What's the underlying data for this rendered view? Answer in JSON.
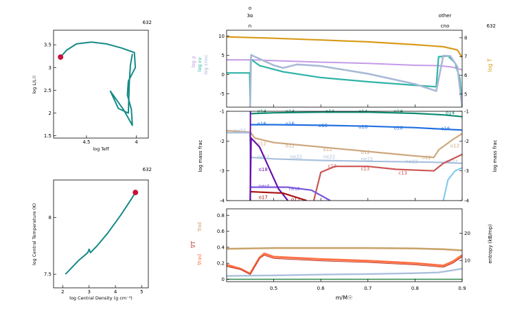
{
  "model_number": "632",
  "colors": {
    "track": "#138a86",
    "marker": "#c8123a",
    "logT": "#d99a1a",
    "logRho": "#c59ae8",
    "logEps": "#2fb3a6",
    "logEpsNuc": "#a9b9d6",
    "axis": "#000000",
    "o14": "#0f8a72",
    "o16": "#1f6fe0",
    "o12": "#cda77e",
    "ne22": "#a8bfdc",
    "c13": "#cc5555",
    "neut": "#7755dd",
    "o18": "#6611aa",
    "o17": "#aa1111",
    "grad_ad": "#c9a36a",
    "grad_rad": "#ff7043",
    "grad_T": "#c0392b",
    "entropy": "#a9c0dc"
  },
  "hr_panel": {
    "model": "632",
    "xlabel": "log Teff",
    "ylabel": "log L/L☉",
    "xticks": [
      {
        "v": 4.5,
        "label": "4.5"
      },
      {
        "v": 4.0,
        "label": "4"
      }
    ],
    "yticks": [
      {
        "v": 1.5,
        "label": "1.5"
      },
      {
        "v": 2.0,
        "label": "2"
      },
      {
        "v": 2.5,
        "label": "2.5"
      },
      {
        "v": 3.0,
        "label": "3"
      },
      {
        "v": 3.5,
        "label": "3.5"
      }
    ],
    "xlim": [
      4.83,
      3.88
    ],
    "ylim": [
      1.45,
      3.82
    ],
    "current": [
      4.76,
      3.23
    ],
    "track": [
      [
        4.76,
        3.23
      ],
      [
        4.7,
        3.38
      ],
      [
        4.6,
        3.52
      ],
      [
        4.45,
        3.56
      ],
      [
        4.3,
        3.52
      ],
      [
        4.15,
        3.43
      ],
      [
        4.02,
        3.33
      ],
      [
        4.01,
        3.0
      ],
      [
        4.08,
        2.7
      ],
      [
        4.09,
        2.4
      ],
      [
        4.05,
        2.08
      ],
      [
        4.04,
        1.73
      ],
      [
        4.13,
        2.08
      ],
      [
        4.26,
        2.48
      ],
      [
        4.18,
        2.1
      ],
      [
        4.08,
        2.0
      ],
      [
        4.07,
        2.7
      ],
      [
        4.06,
        3.05
      ],
      [
        4.04,
        3.3
      ]
    ]
  },
  "center_panel": {
    "model": "632",
    "xlabel": "log Central Density (g cm⁻³)",
    "ylabel": "log Central Temperature (K)",
    "xticks": [
      {
        "v": 2,
        "label": "2"
      },
      {
        "v": 3,
        "label": "3"
      },
      {
        "v": 4,
        "label": "4"
      },
      {
        "v": 5,
        "label": "5"
      }
    ],
    "yticks": [
      {
        "v": 7.5,
        "label": "7.5"
      },
      {
        "v": 8,
        "label": "8"
      }
    ],
    "xlim": [
      1.65,
      5.25
    ],
    "ylim": [
      7.38,
      8.33
    ],
    "current": [
      4.76,
      8.22
    ],
    "track": [
      [
        2.1,
        7.5
      ],
      [
        2.6,
        7.62
      ],
      [
        2.95,
        7.69
      ],
      [
        3.0,
        7.72
      ],
      [
        3.05,
        7.69
      ],
      [
        3.3,
        7.75
      ],
      [
        3.7,
        7.86
      ],
      [
        4.2,
        8.02
      ],
      [
        4.6,
        8.16
      ],
      [
        4.76,
        8.22
      ]
    ]
  },
  "top_labels": {
    "left_col": [
      "o",
      "3α",
      "n"
    ],
    "right_col": [
      "other",
      "cno"
    ],
    "model": "632"
  },
  "panel_a": {
    "ylabels": [
      "log ρ",
      "log εν",
      "log εnuc"
    ],
    "right_label": "log T",
    "yticks": [
      {
        "v": -5,
        "label": "-5"
      },
      {
        "v": 0,
        "label": "0"
      },
      {
        "v": 5,
        "label": "5"
      },
      {
        "v": 10,
        "label": "10"
      }
    ],
    "ylim": [
      -8.5,
      11.5
    ],
    "right_ticks": [
      {
        "v": 5,
        "label": "5"
      },
      {
        "v": 6,
        "label": "6"
      },
      {
        "v": 7,
        "label": "7"
      },
      {
        "v": 8,
        "label": "8"
      }
    ],
    "right_lim": [
      4.3,
      8.4
    ],
    "series": {
      "logT": [
        [
          0.4,
          8.05
        ],
        [
          0.5,
          7.97
        ],
        [
          0.6,
          7.88
        ],
        [
          0.7,
          7.78
        ],
        [
          0.8,
          7.63
        ],
        [
          0.86,
          7.52
        ],
        [
          0.89,
          7.35
        ],
        [
          0.9,
          6.95
        ]
      ],
      "logRho": [
        [
          0.4,
          3.8
        ],
        [
          0.45,
          3.8
        ],
        [
          0.5,
          3.6
        ],
        [
          0.6,
          3.2
        ],
        [
          0.7,
          2.9
        ],
        [
          0.8,
          2.4
        ],
        [
          0.85,
          2.3
        ],
        [
          0.88,
          1.9
        ],
        [
          0.9,
          1.2
        ]
      ],
      "logEps": [
        [
          0.4,
          0.4
        ],
        [
          0.449,
          0.4
        ],
        [
          0.45,
          -7.4
        ],
        [
          0.451,
          4.0
        ],
        [
          0.47,
          2.3
        ],
        [
          0.52,
          0.7
        ],
        [
          0.6,
          -0.8
        ],
        [
          0.7,
          -1.9
        ],
        [
          0.8,
          -2.8
        ],
        [
          0.845,
          -3.2
        ],
        [
          0.85,
          4.6
        ],
        [
          0.87,
          4.8
        ],
        [
          0.885,
          3.0
        ],
        [
          0.895,
          -1.0
        ],
        [
          0.9,
          -7.5
        ]
      ],
      "logEpsNuc": [
        [
          0.45,
          -8.5
        ],
        [
          0.452,
          5.1
        ],
        [
          0.46,
          4.6
        ],
        [
          0.5,
          2.4
        ],
        [
          0.52,
          1.7
        ],
        [
          0.55,
          2.6
        ],
        [
          0.6,
          2.2
        ],
        [
          0.7,
          0.2
        ],
        [
          0.8,
          -2.5
        ],
        [
          0.845,
          -4.3
        ],
        [
          0.86,
          4.9
        ],
        [
          0.875,
          4.8
        ],
        [
          0.89,
          2.0
        ],
        [
          0.9,
          -8.5
        ]
      ]
    }
  },
  "panel_b": {
    "ylabel": "log mass frac",
    "right_label": "log mass frac",
    "yticks": [
      {
        "v": -4,
        "label": "-4"
      },
      {
        "v": -3,
        "label": "-3"
      },
      {
        "v": -2,
        "label": "-2"
      },
      {
        "v": -1,
        "label": "-1"
      }
    ],
    "ylim": [
      -4,
      -1
    ],
    "species": [
      {
        "key": "o14",
        "label": "o14",
        "points": [
          [
            0.45,
            -1.08
          ],
          [
            0.5,
            -1.05
          ],
          [
            0.6,
            -1.03
          ],
          [
            0.7,
            -1.03
          ],
          [
            0.8,
            -1.07
          ],
          [
            0.86,
            -1.12
          ],
          [
            0.9,
            -1.18
          ]
        ],
        "labels": [
          [
            0.465,
            -1.0
          ],
          [
            0.525,
            -1.0
          ],
          [
            0.61,
            -1.0
          ],
          [
            0.68,
            -1.0
          ],
          [
            0.755,
            -1.0
          ],
          [
            0.865,
            -1.05
          ]
        ]
      },
      {
        "key": "o16",
        "label": "o16",
        "points": [
          [
            0.45,
            -1.45
          ],
          [
            0.5,
            -1.45
          ],
          [
            0.6,
            -1.47
          ],
          [
            0.7,
            -1.5
          ],
          [
            0.8,
            -1.55
          ],
          [
            0.86,
            -1.6
          ],
          [
            0.9,
            -1.63
          ]
        ],
        "labels": [
          [
            0.465,
            -1.42
          ],
          [
            0.525,
            -1.42
          ],
          [
            0.595,
            -1.47
          ],
          [
            0.68,
            -1.52
          ],
          [
            0.755,
            -1.55
          ],
          [
            0.855,
            -1.58
          ]
        ]
      },
      {
        "key": "o12",
        "label": "o12",
        "points": [
          [
            0.4,
            -1.65
          ],
          [
            0.45,
            -1.7
          ],
          [
            0.46,
            -1.9
          ],
          [
            0.5,
            -2.05
          ],
          [
            0.6,
            -2.2
          ],
          [
            0.7,
            -2.35
          ],
          [
            0.8,
            -2.5
          ],
          [
            0.84,
            -2.55
          ],
          [
            0.85,
            -2.3
          ],
          [
            0.88,
            -1.95
          ],
          [
            0.9,
            -1.75
          ]
        ],
        "labels": [
          [
            0.465,
            -2.08
          ],
          [
            0.525,
            -2.15
          ],
          [
            0.605,
            -2.28
          ],
          [
            0.685,
            -2.37
          ],
          [
            0.815,
            -2.55
          ],
          [
            0.875,
            -2.15
          ]
        ]
      },
      {
        "key": "ne22",
        "label": "ne22",
        "points": [
          [
            0.4,
            -1.72
          ],
          [
            0.449,
            -1.72
          ],
          [
            0.452,
            -2.55
          ],
          [
            0.5,
            -2.6
          ],
          [
            0.6,
            -2.65
          ],
          [
            0.7,
            -2.68
          ],
          [
            0.8,
            -2.7
          ],
          [
            0.86,
            -2.72
          ],
          [
            0.9,
            -2.75
          ]
        ],
        "labels": [
          [
            0.415,
            -1.65
          ],
          [
            0.465,
            -2.52
          ],
          [
            0.535,
            -2.52
          ],
          [
            0.605,
            -2.52
          ],
          [
            0.685,
            -2.6
          ],
          [
            0.78,
            -2.68
          ],
          [
            0.865,
            -2.68
          ]
        ]
      },
      {
        "key": "c13",
        "label": "c13",
        "points": [
          [
            0.585,
            -4.0
          ],
          [
            0.6,
            -3.05
          ],
          [
            0.63,
            -2.85
          ],
          [
            0.7,
            -2.85
          ],
          [
            0.76,
            -2.95
          ],
          [
            0.84,
            -3.0
          ],
          [
            0.86,
            -2.75
          ],
          [
            0.88,
            -2.6
          ],
          [
            0.9,
            -2.45
          ]
        ],
        "labels": [
          [
            0.615,
            -2.83
          ],
          [
            0.685,
            -2.93
          ],
          [
            0.765,
            -3.07
          ]
        ]
      },
      {
        "key": "neut",
        "label": "neut",
        "points": [
          [
            0.45,
            -3.55
          ],
          [
            0.53,
            -3.55
          ],
          [
            0.58,
            -3.65
          ],
          [
            0.62,
            -4.0
          ]
        ],
        "labels": [
          [
            0.468,
            -3.5
          ],
          [
            0.532,
            -3.6
          ]
        ]
      },
      {
        "key": "o18",
        "label": "o18",
        "points": [
          [
            0.45,
            -4.0
          ],
          [
            0.452,
            -1.9
          ],
          [
            0.47,
            -2.2
          ],
          [
            0.49,
            -2.9
          ],
          [
            0.51,
            -3.6
          ],
          [
            0.53,
            -4.0
          ]
        ],
        "labels": [
          [
            0.468,
            -2.95
          ]
        ]
      },
      {
        "key": "o17",
        "label": "o17",
        "points": [
          [
            0.45,
            -3.7
          ],
          [
            0.52,
            -3.75
          ],
          [
            0.57,
            -4.0
          ]
        ],
        "labels": [
          [
            0.468,
            -3.88
          ],
          [
            0.537,
            -3.95
          ]
        ]
      }
    ]
  },
  "panel_c": {
    "ylabels": [
      "∇ad",
      "∇T",
      "∇rad"
    ],
    "right_label": "entropy (kB/mp)",
    "xlabel": "m/M☉",
    "yticks": [
      {
        "v": 0,
        "label": "0"
      },
      {
        "v": 0.2,
        "label": "0.2"
      },
      {
        "v": 0.4,
        "label": "0.4"
      },
      {
        "v": 0.6,
        "label": "0.6"
      },
      {
        "v": 0.8,
        "label": "0.8"
      }
    ],
    "ylim": [
      -0.03,
      0.88
    ],
    "right_ticks": [
      {
        "v": 10,
        "label": "10"
      },
      {
        "v": 20,
        "label": "20"
      }
    ],
    "right_lim": [
      2.2,
      29.0
    ],
    "xticks": [
      {
        "v": 0.5,
        "label": "0.5"
      },
      {
        "v": 0.6,
        "label": "0.6"
      },
      {
        "v": 0.7,
        "label": "0.7"
      },
      {
        "v": 0.8,
        "label": "0.8"
      },
      {
        "v": 0.9,
        "label": "0.9"
      }
    ],
    "xlim": [
      0.4,
      0.9
    ],
    "series": {
      "grad_ad": [
        [
          0.4,
          0.38
        ],
        [
          0.5,
          0.39
        ],
        [
          0.6,
          0.39
        ],
        [
          0.7,
          0.39
        ],
        [
          0.8,
          0.385
        ],
        [
          0.86,
          0.375
        ],
        [
          0.9,
          0.36
        ]
      ],
      "grad_rad": [
        [
          0.4,
          0.18
        ],
        [
          0.43,
          0.13
        ],
        [
          0.45,
          0.07
        ],
        [
          0.47,
          0.27
        ],
        [
          0.48,
          0.32
        ],
        [
          0.5,
          0.28
        ],
        [
          0.6,
          0.25
        ],
        [
          0.7,
          0.23
        ],
        [
          0.8,
          0.2
        ],
        [
          0.86,
          0.17
        ],
        [
          0.88,
          0.22
        ],
        [
          0.9,
          0.3
        ]
      ],
      "grad_T": [
        [
          0.4,
          0.16
        ],
        [
          0.43,
          0.12
        ],
        [
          0.45,
          0.06
        ],
        [
          0.47,
          0.26
        ],
        [
          0.48,
          0.3
        ],
        [
          0.5,
          0.26
        ],
        [
          0.6,
          0.23
        ],
        [
          0.7,
          0.21
        ],
        [
          0.8,
          0.18
        ],
        [
          0.86,
          0.15
        ],
        [
          0.88,
          0.2
        ],
        [
          0.9,
          0.28
        ]
      ],
      "entropy": [
        [
          0.4,
          4.3
        ],
        [
          0.5,
          4.5
        ],
        [
          0.6,
          4.8
        ],
        [
          0.7,
          5.0
        ],
        [
          0.8,
          5.3
        ],
        [
          0.85,
          5.6
        ],
        [
          0.88,
          6.4
        ],
        [
          0.9,
          7.0
        ]
      ]
    }
  }
}
